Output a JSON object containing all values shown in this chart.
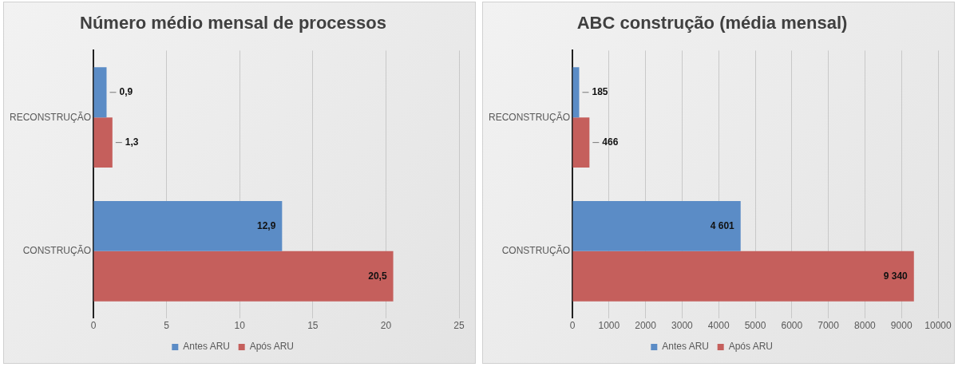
{
  "chart_data": [
    {
      "type": "bar",
      "orientation": "horizontal",
      "title": "Número médio mensal de processos",
      "categories": [
        "RECONSTRUÇÃO",
        "CONSTRUÇÃO"
      ],
      "series": [
        {
          "name": "Antes ARU",
          "color": "#5b8cc6",
          "values": [
            0.9,
            12.9
          ],
          "value_labels": [
            "0,9",
            "12,9"
          ]
        },
        {
          "name": "Após ARU",
          "color": "#c55f5c",
          "values": [
            1.3,
            20.5
          ],
          "value_labels": [
            "1,3",
            "20,5"
          ]
        }
      ],
      "xlim": [
        0,
        25
      ],
      "xticks": [
        0,
        5,
        10,
        15,
        20,
        25
      ],
      "grid": "x",
      "legend": "bottom"
    },
    {
      "type": "bar",
      "orientation": "horizontal",
      "title": "ABC construção (média mensal)",
      "categories": [
        "RECONSTRUÇÃO",
        "CONSTRUÇÃO"
      ],
      "series": [
        {
          "name": "Antes ARU",
          "color": "#5b8cc6",
          "values": [
            185,
            4601
          ],
          "value_labels": [
            "185",
            "4 601"
          ]
        },
        {
          "name": "Após ARU",
          "color": "#c55f5c",
          "values": [
            466,
            9340
          ],
          "value_labels": [
            "466",
            "9 340"
          ]
        }
      ],
      "xlim": [
        0,
        10000
      ],
      "xticks": [
        0,
        1000,
        2000,
        3000,
        4000,
        5000,
        6000,
        7000,
        8000,
        9000,
        10000
      ],
      "grid": "x",
      "legend": "bottom"
    }
  ]
}
